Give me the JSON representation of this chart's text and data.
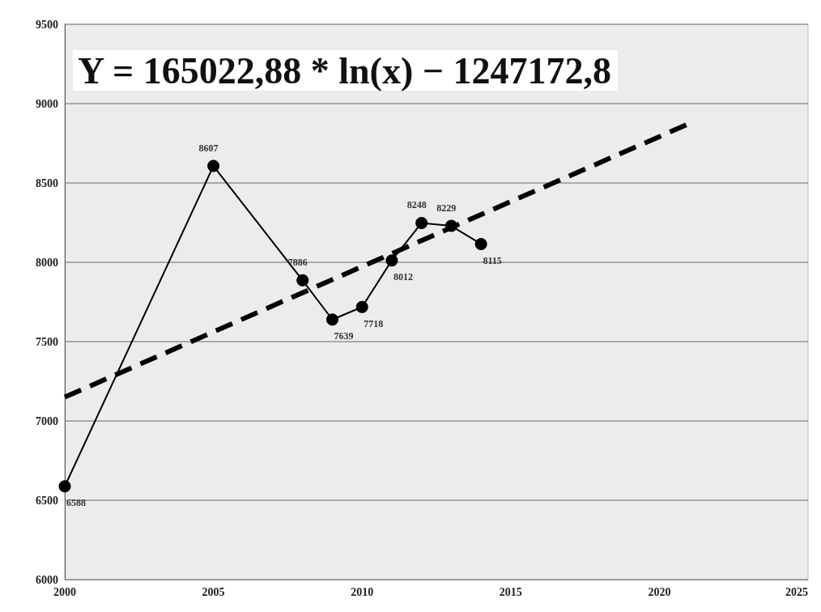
{
  "chart_data": {
    "type": "line",
    "title": "Y = 165022,88 * ln(x) − 1247172,8",
    "xlim": [
      2000,
      2025
    ],
    "xticks": [
      2000,
      2005,
      2010,
      2015,
      2020,
      2025
    ],
    "ylim": [
      6000,
      9500
    ],
    "yticks": [
      6000,
      6500,
      7000,
      7500,
      8000,
      8500,
      9000,
      9500
    ],
    "grid": "y",
    "marker": "circle",
    "series": [
      {
        "x": [
          2000,
          2005,
          2008,
          2009,
          2010,
          2011,
          2012,
          2013,
          2014
        ],
        "values": [
          6588,
          8607,
          7886,
          7639,
          7718,
          8012,
          8248,
          8229,
          8115
        ],
        "value_labels": [
          "6588",
          "8607",
          "7886",
          "7639",
          "7718",
          "8012",
          "8248",
          "8229",
          "8115"
        ],
        "color": "#000000",
        "line_style": "solid"
      },
      {
        "type": "line",
        "x": [
          2000,
          2010,
          2021
        ],
        "values": [
          7150,
          7973,
          8874
        ],
        "color": "#000000",
        "line_style": "dashed",
        "marker": "none"
      }
    ]
  }
}
